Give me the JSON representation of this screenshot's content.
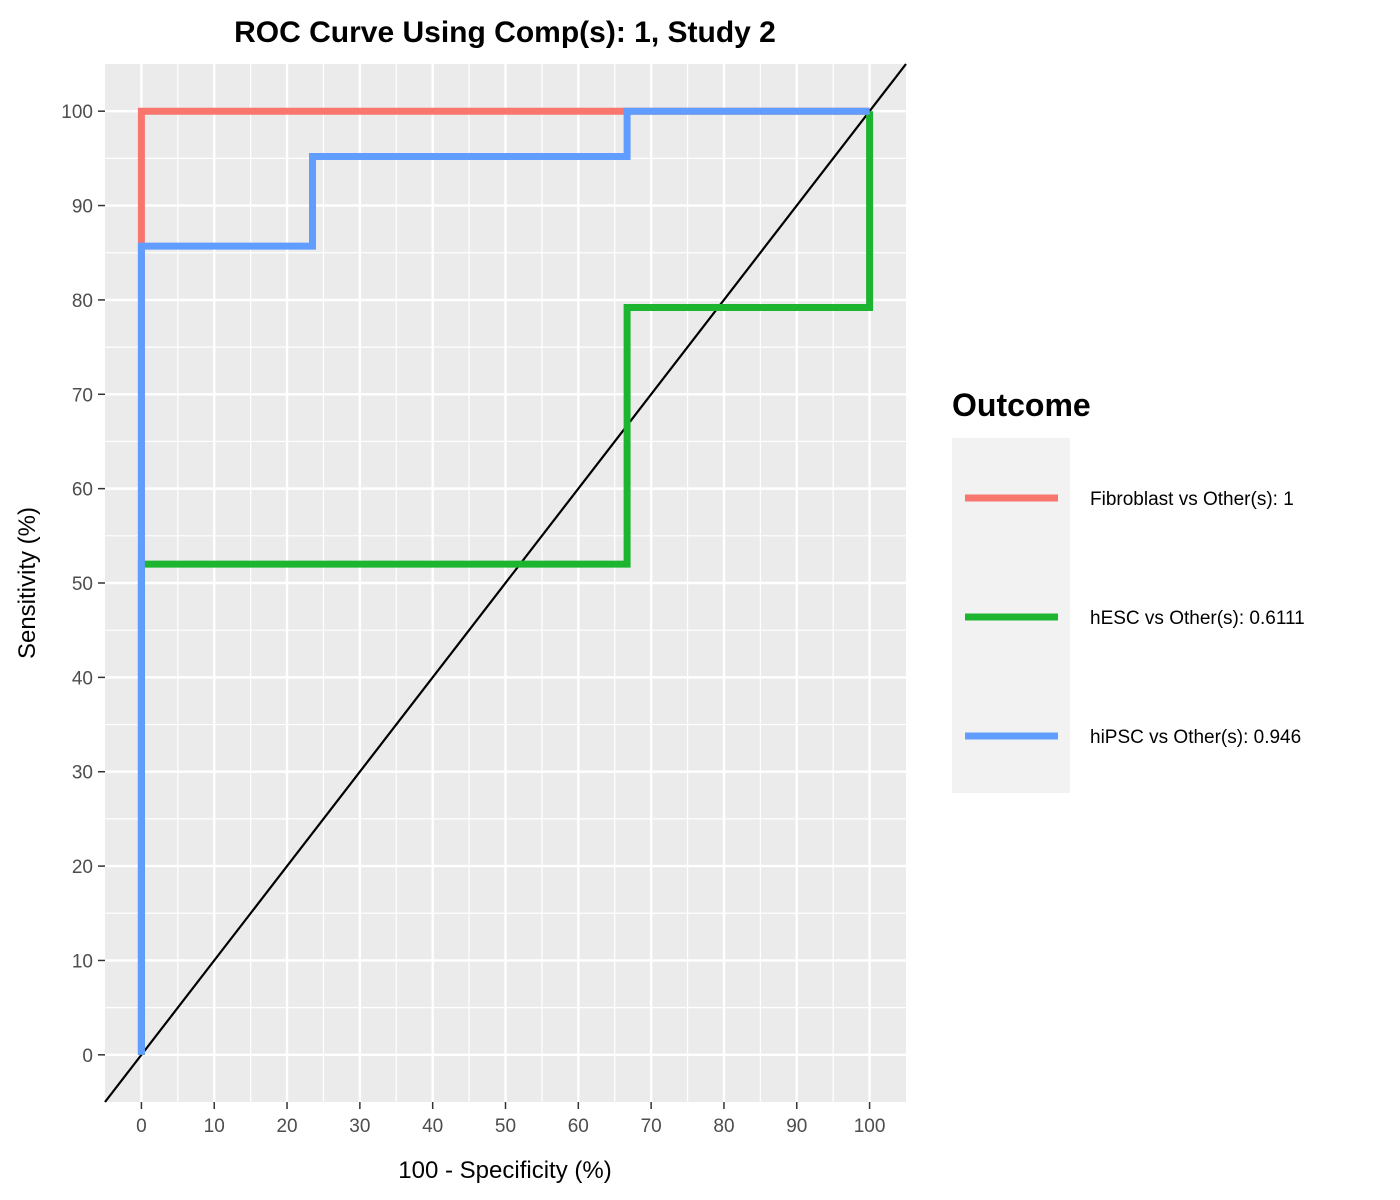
{
  "chart_data": {
    "type": "line",
    "title": "ROC Curve Using Comp(s): 1, Study 2",
    "xlabel": "100 - Specificity (%)",
    "ylabel": "Sensitivity (%)",
    "xlim": [
      -5,
      105
    ],
    "ylim": [
      -5,
      105
    ],
    "xticks": [
      "0",
      "10",
      "20",
      "30",
      "40",
      "50",
      "60",
      "70",
      "80",
      "90",
      "100"
    ],
    "yticks": [
      "0",
      "10",
      "20",
      "30",
      "40",
      "50",
      "60",
      "70",
      "80",
      "90",
      "100"
    ],
    "grid": true,
    "legend": {
      "title": "Outcome",
      "placement": "right"
    },
    "series": [
      {
        "name": "Fibroblast vs Other(s): 1",
        "color": "#F8766D",
        "x": [
          0,
          0,
          100
        ],
        "y": [
          0,
          100,
          100
        ]
      },
      {
        "name": "hESC vs Other(s): 0.6111",
        "color": "#1DB530",
        "x": [
          0,
          0,
          66.7,
          66.7,
          100,
          100
        ],
        "y": [
          0,
          52,
          52,
          79.2,
          79.2,
          100
        ]
      },
      {
        "name": "hiPSC vs Other(s): 0.946",
        "color": "#619CFF",
        "x": [
          0,
          0,
          23.5,
          23.5,
          66.7,
          66.7,
          100
        ],
        "y": [
          0,
          85.7,
          85.7,
          95.2,
          95.2,
          100,
          100
        ]
      }
    ],
    "reference_line": {
      "type": "diagonal",
      "color": "#000000",
      "slope": 1,
      "intercept": 0
    }
  }
}
